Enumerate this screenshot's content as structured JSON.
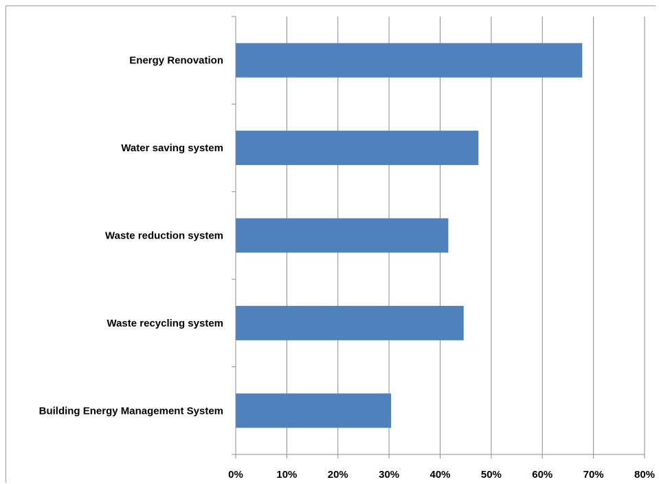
{
  "colors": {
    "bar": "#4f81bd",
    "grid": "#8c8c8c",
    "axis": "#8c8c8c"
  },
  "chart_data": {
    "type": "bar",
    "orientation": "horizontal",
    "title": "",
    "xlabel": "",
    "ylabel": "",
    "categories": [
      "Energy Renovation",
      "Water saving system",
      "Waste reduction system",
      "Waste recycling system",
      "Building Energy Management System"
    ],
    "values": [
      67.8,
      47.5,
      41.6,
      44.6,
      30.4
    ],
    "xlim": [
      0,
      80
    ],
    "x_ticks": [
      0,
      10,
      20,
      30,
      40,
      50,
      60,
      70,
      80
    ],
    "x_tick_labels": [
      "0%",
      "10%",
      "20%",
      "30%",
      "40%",
      "50%",
      "60%",
      "70%",
      "80%"
    ],
    "grid": "vertical",
    "legend": "none"
  }
}
